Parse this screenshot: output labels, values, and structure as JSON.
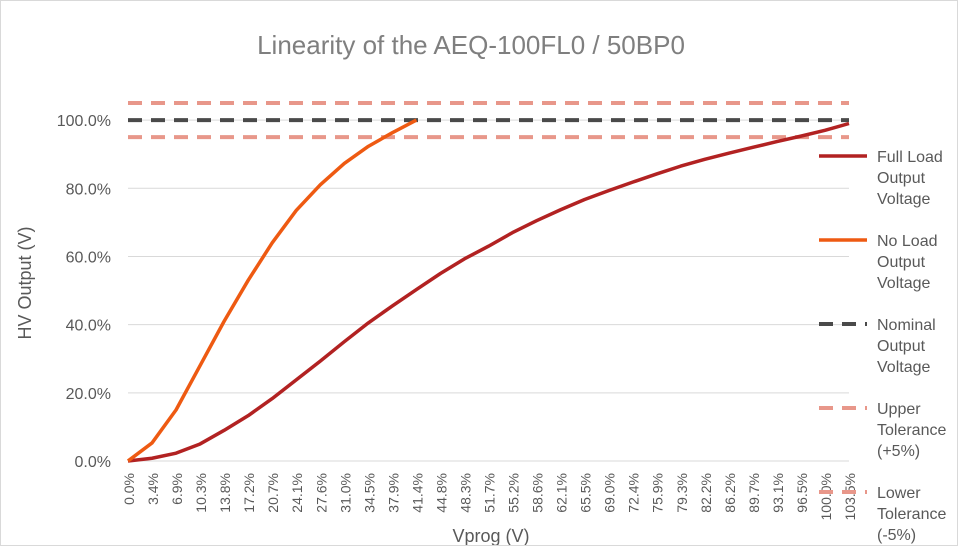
{
  "chart_data": {
    "type": "line",
    "title": "Linearity of the AEQ-100FL0 / 50BP0",
    "xlabel": "Vprog (V)",
    "ylabel": "HV Output (V)",
    "categories": [
      "0.0%",
      "3.4%",
      "6.9%",
      "10.3%",
      "13.8%",
      "17.2%",
      "20.7%",
      "24.1%",
      "27.6%",
      "31.0%",
      "34.5%",
      "37.9%",
      "41.4%",
      "44.8%",
      "48.3%",
      "51.7%",
      "55.2%",
      "58.6%",
      "62.1%",
      "65.5%",
      "69.0%",
      "72.4%",
      "75.9%",
      "79.3%",
      "82.2%",
      "86.2%",
      "89.7%",
      "93.1%",
      "96.5%",
      "100.0%",
      "103.5%"
    ],
    "yticks": [
      "0.0%",
      "20.0%",
      "40.0%",
      "60.0%",
      "80.0%",
      "100.0%"
    ],
    "ylim": [
      0,
      110
    ],
    "grid": true,
    "legend_position": "right",
    "series": [
      {
        "name": "Full Load Output Voltage",
        "color": "#b22222",
        "dash": false,
        "values": [
          0,
          0.8,
          2.3,
          5,
          9,
          13.3,
          18.3,
          23.8,
          29.3,
          35,
          40.5,
          45.5,
          50.3,
          55,
          59.3,
          63,
          67,
          70.5,
          73.7,
          76.7,
          79.3,
          81.8,
          84.2,
          86.5,
          88.5,
          90.3,
          92,
          93.7,
          95.3,
          97,
          99
        ]
      },
      {
        "name": "No Load Output Voltage",
        "color": "#ee5a12",
        "dash": false,
        "values": [
          0,
          5.3,
          15,
          28,
          41,
          53,
          64,
          73.5,
          81,
          87.3,
          92.3,
          96.3,
          100,
          null,
          null,
          null,
          null,
          null,
          null,
          null,
          null,
          null,
          null,
          null,
          null,
          null,
          null,
          null,
          null,
          null,
          null
        ]
      },
      {
        "name": "Nominal Output Voltage",
        "color": "#4a4a4a",
        "dash": true,
        "values": [
          100,
          100,
          100,
          100,
          100,
          100,
          100,
          100,
          100,
          100,
          100,
          100,
          100,
          100,
          100,
          100,
          100,
          100,
          100,
          100,
          100,
          100,
          100,
          100,
          100,
          100,
          100,
          100,
          100,
          100,
          100
        ]
      },
      {
        "name": "Upper Tolerance (+5%)",
        "color": "#e8978a",
        "dash": true,
        "values": [
          105,
          105,
          105,
          105,
          105,
          105,
          105,
          105,
          105,
          105,
          105,
          105,
          105,
          105,
          105,
          105,
          105,
          105,
          105,
          105,
          105,
          105,
          105,
          105,
          105,
          105,
          105,
          105,
          105,
          105,
          105
        ]
      },
      {
        "name": "Lower Tolerance (-5%)",
        "color": "#e8978a",
        "dash": true,
        "values": [
          95,
          95,
          95,
          95,
          95,
          95,
          95,
          95,
          95,
          95,
          95,
          95,
          95,
          95,
          95,
          95,
          95,
          95,
          95,
          95,
          95,
          95,
          95,
          95,
          95,
          95,
          95,
          95,
          95,
          95,
          95
        ]
      }
    ],
    "legend": [
      {
        "lines": [
          "Full Load",
          "Output",
          "Voltage"
        ]
      },
      {
        "lines": [
          "No Load",
          "Output",
          "Voltage"
        ]
      },
      {
        "lines": [
          "Nominal",
          "Output",
          "Voltage"
        ]
      },
      {
        "lines": [
          "Upper",
          "Tolerance",
          "(+5%)"
        ]
      },
      {
        "lines": [
          "Lower",
          "Tolerance",
          "(-5%)"
        ]
      }
    ],
    "colors": {
      "grid": "#d9d9d9",
      "axis_text": "#595959",
      "title_text": "#7f7f7f"
    }
  }
}
